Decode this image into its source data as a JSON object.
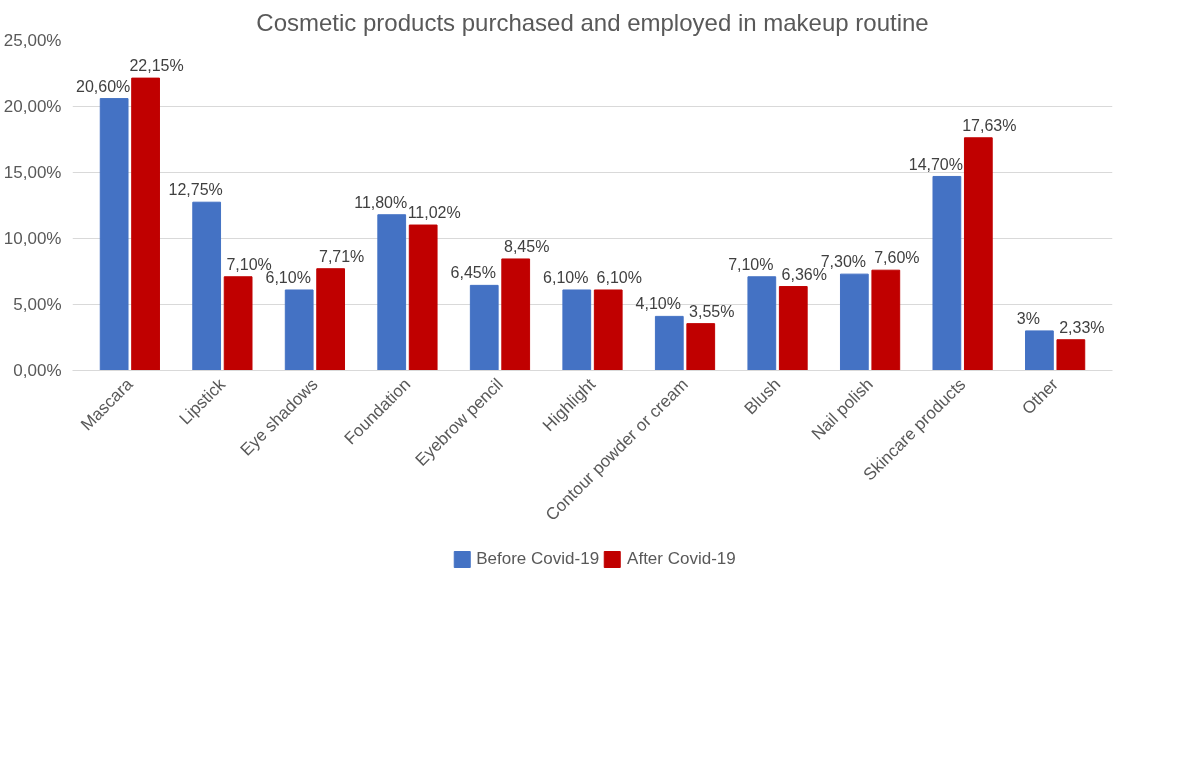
{
  "chart_data": {
    "type": "bar",
    "title": "Cosmetic products purchased and employed in makeup routine",
    "categories": [
      "Mascara",
      "Lipstick",
      "Eye shadows",
      "Foundation",
      "Eyebrow pencil",
      "Highlight",
      "Contour powder or cream",
      "Blush",
      "Nail polish",
      "Skincare products",
      "Other"
    ],
    "series": [
      {
        "name": "Before Covid-19",
        "color": "#4472c4",
        "values": [
          20.6,
          12.75,
          6.1,
          11.8,
          6.45,
          6.1,
          4.1,
          7.1,
          7.3,
          14.7,
          3
        ],
        "value_labels": [
          "20,60%",
          "12,75%",
          "6,10%",
          "11,80%",
          "6,45%",
          "6,10%",
          "4,10%",
          "7,10%",
          "7,30%",
          "14,70%",
          "3%"
        ]
      },
      {
        "name": "After Covid-19",
        "color": "#c00000",
        "values": [
          22.15,
          7.1,
          7.71,
          11.02,
          8.45,
          6.1,
          3.55,
          6.36,
          7.6,
          17.63,
          2.33
        ],
        "value_labels": [
          "22,15%",
          "7,10%",
          "7,71%",
          "11,02%",
          "8,45%",
          "6,10%",
          "3,55%",
          "6,36%",
          "7,60%",
          "17,63%",
          "2,33%"
        ]
      }
    ],
    "ylim": [
      0,
      25
    ],
    "yticks": [
      {
        "value": 0,
        "label": "0,00%"
      },
      {
        "value": 5,
        "label": "5,00%"
      },
      {
        "value": 10,
        "label": "10,00%"
      },
      {
        "value": 15,
        "label": "15,00%"
      },
      {
        "value": 20,
        "label": "20,00%"
      },
      {
        "value": 25,
        "label": "25,00%"
      }
    ],
    "grid": "y",
    "legend": "bottom"
  }
}
